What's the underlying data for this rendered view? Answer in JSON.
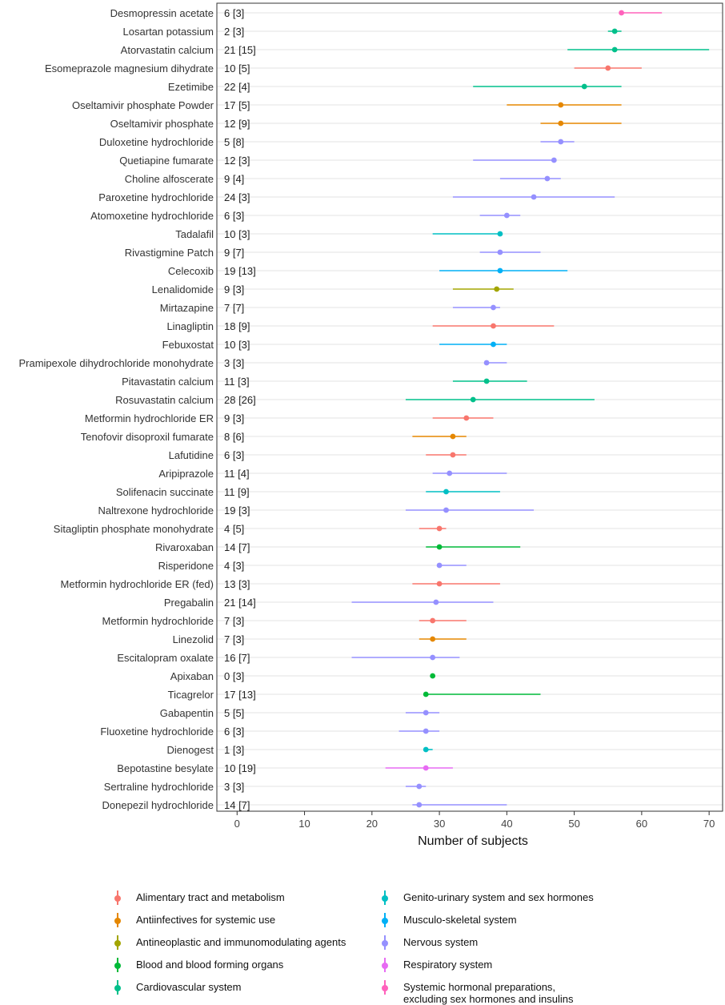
{
  "chart_data": {
    "type": "forest",
    "xlabel": "Number of subjects",
    "xlim": [
      -3,
      72
    ],
    "xticks": [
      0,
      10,
      20,
      30,
      40,
      50,
      60,
      70
    ],
    "groups": {
      "alimentary": {
        "label": "Alimentary tract and metabolism",
        "color": "#F8766D"
      },
      "antiinfectives": {
        "label": "Antiinfectives for systemic use",
        "color": "#E58700"
      },
      "antineoplastic": {
        "label": "Antineoplastic and immunomodulating agents",
        "color": "#A3A500"
      },
      "blood": {
        "label": "Blood and blood forming organs",
        "color": "#00BA38"
      },
      "cardiovascular": {
        "label": "Cardiovascular system",
        "color": "#00C08B"
      },
      "genitourinary": {
        "label": "Genito-urinary system and sex hormones",
        "color": "#00BFC4"
      },
      "musculoskeletal": {
        "label": "Musculo-skeletal system",
        "color": "#00B0F6"
      },
      "nervous": {
        "label": "Nervous system",
        "color": "#9590FF"
      },
      "respiratory": {
        "label": "Respiratory system",
        "color": "#E76BF3"
      },
      "systemic_hormonal": {
        "label": "Systemic hormonal preparations,\nexcluding sex hormones and insulins",
        "color": "#FF62BC"
      }
    },
    "legend_order_left": [
      "alimentary",
      "antiinfectives",
      "antineoplastic",
      "blood",
      "cardiovascular"
    ],
    "legend_order_right": [
      "genitourinary",
      "musculoskeletal",
      "nervous",
      "respiratory",
      "systemic_hormonal"
    ],
    "rows": [
      {
        "drug": "Desmopressin acetate",
        "count": "6 [3]",
        "group": "systemic_hormonal",
        "point": 57,
        "low": 57,
        "high": 63
      },
      {
        "drug": "Losartan potassium",
        "count": "2 [3]",
        "group": "cardiovascular",
        "point": 56,
        "low": 55,
        "high": 57
      },
      {
        "drug": "Atorvastatin calcium",
        "count": "21 [15]",
        "group": "cardiovascular",
        "point": 56,
        "low": 49,
        "high": 70
      },
      {
        "drug": "Esomeprazole magnesium dihydrate",
        "count": "10 [5]",
        "group": "alimentary",
        "point": 55,
        "low": 50,
        "high": 60
      },
      {
        "drug": "Ezetimibe",
        "count": "22 [4]",
        "group": "cardiovascular",
        "point": 51.5,
        "low": 35,
        "high": 57
      },
      {
        "drug": "Oseltamivir phosphate Powder",
        "count": "17 [5]",
        "group": "antiinfectives",
        "point": 48,
        "low": 40,
        "high": 57
      },
      {
        "drug": "Oseltamivir phosphate",
        "count": "12 [9]",
        "group": "antiinfectives",
        "point": 48,
        "low": 45,
        "high": 57
      },
      {
        "drug": "Duloxetine hydrochloride",
        "count": "5 [8]",
        "group": "nervous",
        "point": 48,
        "low": 45,
        "high": 50
      },
      {
        "drug": "Quetiapine fumarate",
        "count": "12 [3]",
        "group": "nervous",
        "point": 47,
        "low": 35,
        "high": 47
      },
      {
        "drug": "Choline alfoscerate",
        "count": "9 [4]",
        "group": "nervous",
        "point": 46,
        "low": 39,
        "high": 48
      },
      {
        "drug": "Paroxetine hydrochloride",
        "count": "24 [3]",
        "group": "nervous",
        "point": 44,
        "low": 32,
        "high": 56
      },
      {
        "drug": "Atomoxetine hydrochloride",
        "count": "6 [3]",
        "group": "nervous",
        "point": 40,
        "low": 36,
        "high": 42
      },
      {
        "drug": "Tadalafil",
        "count": "10 [3]",
        "group": "genitourinary",
        "point": 39,
        "low": 29,
        "high": 39
      },
      {
        "drug": "Rivastigmine Patch",
        "count": "9 [7]",
        "group": "nervous",
        "point": 39,
        "low": 36,
        "high": 45
      },
      {
        "drug": "Celecoxib",
        "count": "19 [13]",
        "group": "musculoskeletal",
        "point": 39,
        "low": 30,
        "high": 49
      },
      {
        "drug": "Lenalidomide",
        "count": "9 [3]",
        "group": "antineoplastic",
        "point": 38.5,
        "low": 32,
        "high": 41
      },
      {
        "drug": "Mirtazapine",
        "count": "7 [7]",
        "group": "nervous",
        "point": 38,
        "low": 32,
        "high": 39
      },
      {
        "drug": "Linagliptin",
        "count": "18 [9]",
        "group": "alimentary",
        "point": 38,
        "low": 29,
        "high": 47
      },
      {
        "drug": "Febuxostat",
        "count": "10 [3]",
        "group": "musculoskeletal",
        "point": 38,
        "low": 30,
        "high": 40
      },
      {
        "drug": "Pramipexole dihydrochloride monohydrate",
        "count": "3 [3]",
        "group": "nervous",
        "point": 37,
        "low": 37,
        "high": 40
      },
      {
        "drug": "Pitavastatin calcium",
        "count": "11 [3]",
        "group": "cardiovascular",
        "point": 37,
        "low": 32,
        "high": 43
      },
      {
        "drug": "Rosuvastatin calcium",
        "count": "28 [26]",
        "group": "cardiovascular",
        "point": 35,
        "low": 25,
        "high": 53
      },
      {
        "drug": "Metformin hydrochloride ER",
        "count": "9 [3]",
        "group": "alimentary",
        "point": 34,
        "low": 29,
        "high": 38
      },
      {
        "drug": "Tenofovir disoproxil fumarate",
        "count": "8 [6]",
        "group": "antiinfectives",
        "point": 32,
        "low": 26,
        "high": 34
      },
      {
        "drug": "Lafutidine",
        "count": "6 [3]",
        "group": "alimentary",
        "point": 32,
        "low": 28,
        "high": 34
      },
      {
        "drug": "Aripiprazole",
        "count": "11 [4]",
        "group": "nervous",
        "point": 31.5,
        "low": 29,
        "high": 40
      },
      {
        "drug": "Solifenacin succinate",
        "count": "11 [9]",
        "group": "genitourinary",
        "point": 31,
        "low": 28,
        "high": 39
      },
      {
        "drug": "Naltrexone hydrochloride",
        "count": "19 [3]",
        "group": "nervous",
        "point": 31,
        "low": 25,
        "high": 44
      },
      {
        "drug": "Sitagliptin phosphate monohydrate",
        "count": "4 [5]",
        "group": "alimentary",
        "point": 30,
        "low": 27,
        "high": 31
      },
      {
        "drug": "Rivaroxaban",
        "count": "14 [7]",
        "group": "blood",
        "point": 30,
        "low": 28,
        "high": 42
      },
      {
        "drug": "Risperidone",
        "count": "4 [3]",
        "group": "nervous",
        "point": 30,
        "low": 30,
        "high": 34
      },
      {
        "drug": "Metformin hydrochloride ER (fed)",
        "count": "13 [3]",
        "group": "alimentary",
        "point": 30,
        "low": 26,
        "high": 39
      },
      {
        "drug": "Pregabalin",
        "count": "21 [14]",
        "group": "nervous",
        "point": 29.5,
        "low": 17,
        "high": 38
      },
      {
        "drug": "Metformin hydrochloride",
        "count": "7 [3]",
        "group": "alimentary",
        "point": 29,
        "low": 27,
        "high": 34
      },
      {
        "drug": "Linezolid",
        "count": "7 [3]",
        "group": "antiinfectives",
        "point": 29,
        "low": 27,
        "high": 34
      },
      {
        "drug": "Escitalopram oxalate",
        "count": "16 [7]",
        "group": "nervous",
        "point": 29,
        "low": 17,
        "high": 33
      },
      {
        "drug": "Apixaban",
        "count": "0 [3]",
        "group": "blood",
        "point": 29,
        "low": 29,
        "high": 29
      },
      {
        "drug": "Ticagrelor",
        "count": "17 [13]",
        "group": "blood",
        "point": 28,
        "low": 28,
        "high": 45
      },
      {
        "drug": "Gabapentin",
        "count": "5 [5]",
        "group": "nervous",
        "point": 28,
        "low": 25,
        "high": 30
      },
      {
        "drug": "Fluoxetine hydrochloride",
        "count": "6 [3]",
        "group": "nervous",
        "point": 28,
        "low": 24,
        "high": 30
      },
      {
        "drug": "Dienogest",
        "count": "1 [3]",
        "group": "genitourinary",
        "point": 28,
        "low": 28,
        "high": 29
      },
      {
        "drug": "Bepotastine besylate",
        "count": "10 [19]",
        "group": "respiratory",
        "point": 28,
        "low": 22,
        "high": 32
      },
      {
        "drug": "Sertraline hydrochloride",
        "count": "3 [3]",
        "group": "nervous",
        "point": 27,
        "low": 25,
        "high": 28
      },
      {
        "drug": "Donepezil hydrochloride",
        "count": "14 [7]",
        "group": "nervous",
        "point": 27,
        "low": 26,
        "high": 40
      }
    ]
  }
}
